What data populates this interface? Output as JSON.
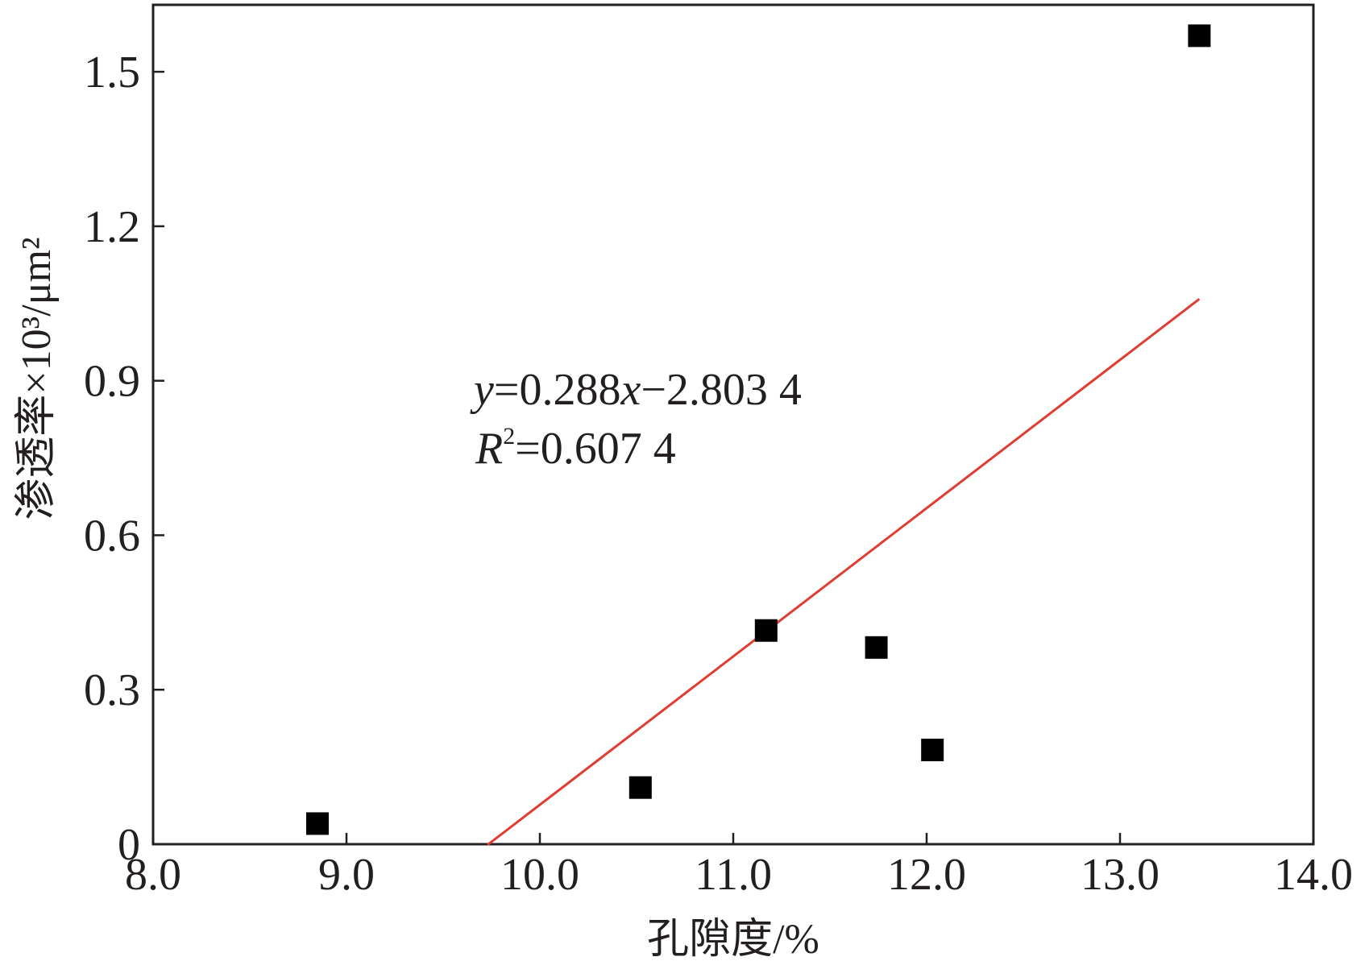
{
  "chart_data": {
    "type": "scatter",
    "xlabel": "孔隙度/%",
    "ylabel": "渗透率×10³/μm²",
    "xlim": [
      8.0,
      14.0
    ],
    "ylim": [
      0,
      1.63
    ],
    "x_ticks": [
      8.0,
      9.0,
      10.0,
      11.0,
      12.0,
      13.0,
      14.0
    ],
    "x_tick_labels": [
      "8.0",
      "9.0",
      "10.0",
      "11.0",
      "12.0",
      "13.0",
      "14.0"
    ],
    "y_ticks": [
      0,
      0.3,
      0.6,
      0.9,
      1.2,
      1.5
    ],
    "y_tick_labels": [
      "0",
      "0.3",
      "0.6",
      "0.9",
      "1.2",
      "1.5"
    ],
    "grid": false,
    "series": [
      {
        "marker": "square",
        "color": "#000000",
        "points": [
          {
            "x": 8.85,
            "y": 0.04
          },
          {
            "x": 10.52,
            "y": 0.11
          },
          {
            "x": 11.17,
            "y": 0.415
          },
          {
            "x": 11.74,
            "y": 0.382
          },
          {
            "x": 12.03,
            "y": 0.183
          },
          {
            "x": 13.41,
            "y": 1.57
          }
        ]
      }
    ],
    "fit": {
      "slope": 0.288,
      "intercept": -2.8034,
      "x_range": [
        9.73,
        13.41
      ],
      "color": "#e03c31"
    },
    "annotation": {
      "eq_y": "y",
      "eq_rest1": "=0.288",
      "eq_x": "x",
      "eq_rest2": "−2.803 4",
      "r_label": "R",
      "r_sup": "2",
      "r_value": "=0.607 4"
    }
  }
}
